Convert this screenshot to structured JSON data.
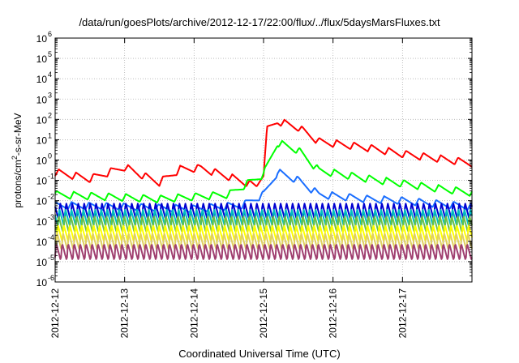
{
  "chart_data": {
    "type": "line",
    "title": "/data/run/goesPlots/archive/2012-12-17/22:00/flux/../flux/5daysMarsFluxes.txt",
    "xlabel": "Coordinated Universal Time (UTC)",
    "ylabel": {
      "before": "protons/cm",
      "sup": "2",
      "after": "-s-sr-MeV"
    },
    "x_range": [
      "2012-12-12",
      "2012-12-18"
    ],
    "x_ticks": [
      "2012-12-12",
      "2012-12-13",
      "2012-12-14",
      "2012-12-15",
      "2012-12-16",
      "2012-12-17"
    ],
    "y_scale": "log",
    "ylim": [
      1e-06,
      1000000.0
    ],
    "y_ticks": [
      {
        "base": "10",
        "exp": "-6"
      },
      {
        "base": "10",
        "exp": "-5"
      },
      {
        "base": "10",
        "exp": "-4"
      },
      {
        "base": "10",
        "exp": "-3"
      },
      {
        "base": "10",
        "exp": "-2"
      },
      {
        "base": "10",
        "exp": "-1"
      },
      {
        "base": "10",
        "exp": "0"
      },
      {
        "base": "10",
        "exp": "1"
      },
      {
        "base": "10",
        "exp": "2"
      },
      {
        "base": "10",
        "exp": "3"
      },
      {
        "base": "10",
        "exp": "4"
      },
      {
        "base": "10",
        "exp": "5"
      },
      {
        "base": "10",
        "exp": "6"
      }
    ],
    "grid": true,
    "legend": "none",
    "series": [
      {
        "color": "#ff0000",
        "points": [
          [
            0,
            0.25
          ],
          [
            0.5,
            0.12
          ],
          [
            1.0,
            0.45
          ],
          [
            1.25,
            0.18
          ],
          [
            1.5,
            0.08
          ],
          [
            1.8,
            0.35
          ],
          [
            2.1,
            0.4
          ],
          [
            2.5,
            0.15
          ],
          [
            2.9,
            0.05
          ],
          [
            3.0,
            0.25
          ],
          [
            3.05,
            30
          ],
          [
            3.2,
            80
          ],
          [
            3.5,
            40
          ],
          [
            3.8,
            8
          ],
          [
            4.5,
            4
          ],
          [
            5.0,
            2
          ],
          [
            5.5,
            1.2
          ],
          [
            6.0,
            0.7
          ]
        ]
      },
      {
        "color": "#00ff00",
        "points": [
          [
            0,
            0.02
          ],
          [
            1.5,
            0.012
          ],
          [
            2.5,
            0.02
          ],
          [
            3.0,
            0.2
          ],
          [
            3.2,
            7
          ],
          [
            3.5,
            3
          ],
          [
            3.8,
            0.3
          ],
          [
            4.5,
            0.12
          ],
          [
            5.0,
            0.07
          ],
          [
            5.5,
            0.04
          ],
          [
            6.0,
            0.025
          ]
        ]
      },
      {
        "color": "#1a6eff",
        "points": [
          [
            0,
            0.006
          ],
          [
            2.0,
            0.004
          ],
          [
            2.7,
            0.006
          ],
          [
            3.0,
            0.02
          ],
          [
            3.2,
            0.25
          ],
          [
            3.5,
            0.1
          ],
          [
            3.8,
            0.02
          ],
          [
            4.5,
            0.012
          ],
          [
            5.0,
            0.01
          ],
          [
            5.5,
            0.007
          ],
          [
            6.0,
            0.005
          ]
        ]
      },
      {
        "color": "#0000d0",
        "points": [
          [
            0,
            0.003
          ],
          [
            6.0,
            0.003
          ]
        ]
      },
      {
        "color": "#00c0c0",
        "points": [
          [
            0,
            0.0015
          ],
          [
            6.0,
            0.0015
          ]
        ]
      },
      {
        "color": "#70c040",
        "points": [
          [
            0,
            0.0007
          ],
          [
            6.0,
            0.0007
          ]
        ]
      },
      {
        "color": "#ffff00",
        "points": [
          [
            0,
            0.00025
          ],
          [
            6.0,
            0.00025
          ]
        ]
      },
      {
        "color": "#e0d060",
        "points": [
          [
            0,
            0.0001
          ],
          [
            6.0,
            0.0001
          ]
        ]
      },
      {
        "color": "#a04070",
        "points": [
          [
            0,
            3e-05
          ],
          [
            6.0,
            3e-05
          ]
        ]
      }
    ]
  }
}
